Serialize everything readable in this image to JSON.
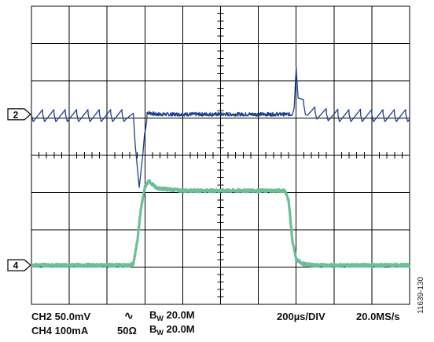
{
  "figure_id": "11639-130",
  "colors": {
    "ch2": "#1f3f8c",
    "ch4": "#6cbf96",
    "grid": "#000000"
  },
  "chart_data": {
    "type": "line",
    "instrument": "oscilloscope",
    "grid": {
      "divisions_x": 10,
      "divisions_y": 8,
      "on": true
    },
    "x_unit": "div",
    "y_unit": "div",
    "markers": [
      {
        "label": "2",
        "channel": "CH2",
        "y_div": 1.1
      },
      {
        "label": "4",
        "channel": "CH4",
        "y_div": -2.95
      }
    ],
    "series": [
      {
        "name": "CH2",
        "color": "#1f3f8c",
        "points": [
          [
            0,
            1.1
          ],
          [
            1,
            1.1
          ],
          [
            2.5,
            1.1
          ],
          [
            2.7,
            1.0
          ],
          [
            2.85,
            -0.8
          ],
          [
            2.95,
            0.0
          ],
          [
            3.05,
            1.15
          ],
          [
            3.3,
            1.1
          ],
          [
            5,
            1.1
          ],
          [
            6.9,
            1.1
          ],
          [
            6.95,
            1.5
          ],
          [
            7.0,
            2.5
          ],
          [
            7.05,
            1.6
          ],
          [
            7.3,
            1.2
          ],
          [
            8,
            1.1
          ],
          [
            10,
            1.1
          ]
        ]
      },
      {
        "name": "CH4",
        "color": "#6cbf96",
        "points": [
          [
            0,
            -2.95
          ],
          [
            2.6,
            -2.95
          ],
          [
            2.7,
            -2.9
          ],
          [
            2.8,
            -2.3
          ],
          [
            2.9,
            -1.4
          ],
          [
            3.0,
            -0.85
          ],
          [
            3.1,
            -0.68
          ],
          [
            3.3,
            -0.88
          ],
          [
            4,
            -0.95
          ],
          [
            5,
            -0.95
          ],
          [
            6,
            -0.95
          ],
          [
            6.7,
            -0.95
          ],
          [
            6.8,
            -1.2
          ],
          [
            6.9,
            -2.3
          ],
          [
            7.0,
            -2.8
          ],
          [
            7.2,
            -2.92
          ],
          [
            7.5,
            -2.95
          ],
          [
            10,
            -2.95
          ]
        ]
      }
    ]
  },
  "readout": {
    "ch2": "CH2 50.0mV",
    "ch2_coupling": "∿",
    "ch2_bw_b": "B",
    "ch2_bw_sub": "W",
    "ch2_bw_val": " 20.0M",
    "ch4": "CH4 100mA",
    "ch4_imp": "50Ω",
    "ch4_bw_b": "B",
    "ch4_bw_sub": "W",
    "ch4_bw_val": " 20.0M",
    "timebase": "200µs/DIV",
    "samplerate": "20.0MS/s"
  }
}
